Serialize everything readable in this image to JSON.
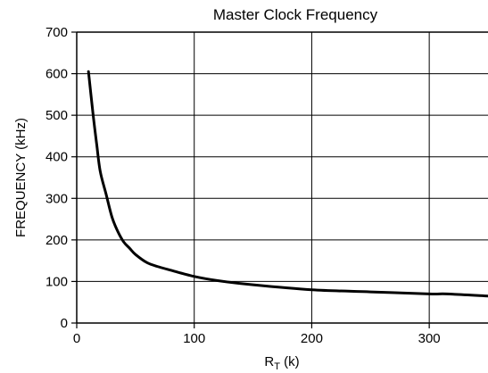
{
  "chart_data": {
    "type": "line",
    "title": "Master Clock Frequency",
    "xlabel": {
      "main": "R",
      "subscript": "T",
      "suffix": " (k)"
    },
    "ylabel": "FREQUENCY (kHz)",
    "xlim": [
      0,
      350
    ],
    "ylim": [
      0,
      700
    ],
    "x_ticks": [
      0,
      100,
      200,
      300
    ],
    "y_ticks": [
      0,
      100,
      200,
      300,
      400,
      500,
      600,
      700
    ],
    "grid": true,
    "series": [
      {
        "x": [
          10,
          14,
          17,
          20,
          25,
          30,
          35,
          40,
          45,
          50,
          60,
          70,
          80,
          100,
          120,
          150,
          200,
          250,
          300,
          315,
          350
        ],
        "values": [
          605,
          500,
          430,
          365,
          310,
          255,
          220,
          195,
          180,
          165,
          145,
          135,
          127,
          112,
          102,
          92,
          80,
          75,
          70,
          70,
          65
        ]
      }
    ],
    "colors": {
      "line": "#000000",
      "grid": "#000000",
      "background": "#ffffff"
    }
  }
}
